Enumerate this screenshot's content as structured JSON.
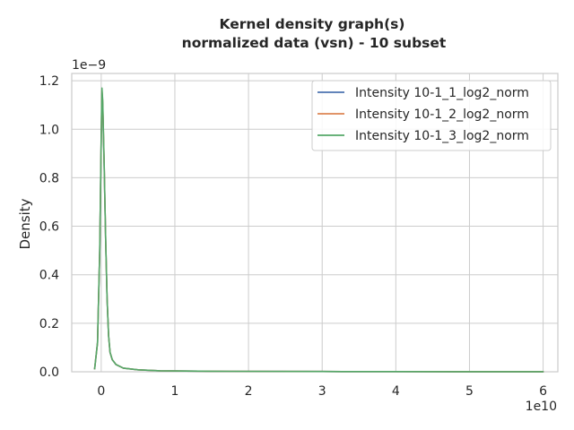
{
  "chart_data": {
    "type": "line",
    "title": "Kernel density graph(s)",
    "subtitle": "normalized data (vsn) - 10 subset",
    "xlabel": "",
    "ylabel": "Density",
    "x_offset_label": "1e10",
    "y_offset_label": "1e−9",
    "xlim": [
      -0.4,
      6.2
    ],
    "ylim": [
      0,
      1.23
    ],
    "xticks": [
      0,
      1,
      2,
      3,
      4,
      5,
      6
    ],
    "xtick_labels": [
      "0",
      "1",
      "2",
      "3",
      "4",
      "5",
      "6"
    ],
    "yticks": [
      0.0,
      0.2,
      0.4,
      0.6,
      0.8,
      1.0,
      1.2
    ],
    "ytick_labels": [
      "0.0",
      "0.2",
      "0.4",
      "0.6",
      "0.8",
      "1.0",
      "1.2"
    ],
    "grid": true,
    "legend_position": "top-right",
    "series": [
      {
        "name": "Intensity 10-1_1_log2_norm",
        "color": "#4c72b0",
        "x": [
          -0.09,
          -0.05,
          -0.02,
          0.0,
          0.01,
          0.02,
          0.04,
          0.06,
          0.08,
          0.1,
          0.12,
          0.15,
          0.2,
          0.3,
          0.5,
          0.8,
          1.5,
          3.0,
          4.0,
          6.0,
          5.9
        ],
        "y": [
          0.01,
          0.12,
          0.5,
          0.95,
          1.15,
          1.1,
          0.85,
          0.55,
          0.3,
          0.15,
          0.08,
          0.05,
          0.03,
          0.015,
          0.008,
          0.004,
          0.002,
          0.001,
          0.0005,
          0.0002,
          0.0002
        ]
      },
      {
        "name": "Intensity 10-1_2_log2_norm",
        "color": "#dd8452",
        "x": [
          -0.09,
          -0.05,
          -0.02,
          0.0,
          0.01,
          0.02,
          0.04,
          0.06,
          0.08,
          0.1,
          0.12,
          0.15,
          0.2,
          0.3,
          0.5,
          0.8,
          1.5,
          3.0,
          4.0,
          6.0,
          5.9
        ],
        "y": [
          0.01,
          0.12,
          0.5,
          0.96,
          1.16,
          1.11,
          0.86,
          0.55,
          0.3,
          0.15,
          0.08,
          0.05,
          0.03,
          0.015,
          0.008,
          0.004,
          0.002,
          0.001,
          0.0005,
          0.0002,
          0.0002
        ]
      },
      {
        "name": "Intensity 10-1_3_log2_norm",
        "color": "#55a868",
        "x": [
          -0.09,
          -0.05,
          -0.02,
          0.0,
          0.01,
          0.02,
          0.04,
          0.06,
          0.08,
          0.1,
          0.12,
          0.15,
          0.2,
          0.3,
          0.5,
          0.8,
          1.5,
          3.0,
          4.0,
          6.0,
          5.9
        ],
        "y": [
          0.01,
          0.12,
          0.5,
          0.97,
          1.17,
          1.12,
          0.86,
          0.55,
          0.3,
          0.15,
          0.08,
          0.05,
          0.03,
          0.015,
          0.008,
          0.004,
          0.002,
          0.001,
          0.0005,
          0.0002,
          0.0002
        ]
      }
    ]
  }
}
